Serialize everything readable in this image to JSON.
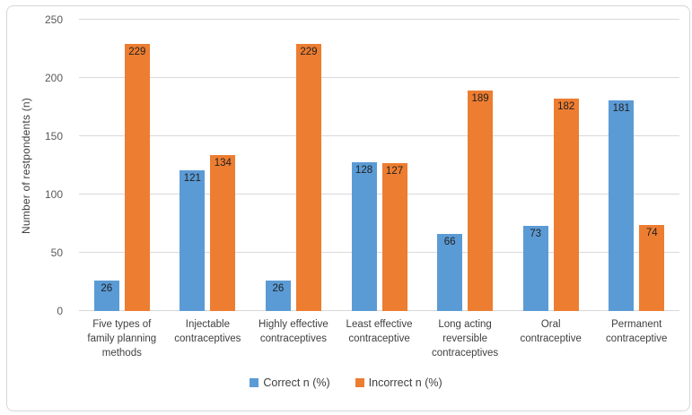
{
  "chart_data": {
    "type": "bar",
    "title": "",
    "xlabel": "",
    "ylabel": "Number of restpondents (n)",
    "ylim": [
      0,
      250
    ],
    "yticks": [
      0,
      50,
      100,
      150,
      200,
      250
    ],
    "grid": true,
    "legend_position": "bottom",
    "data_labels": "inside-end",
    "categories": [
      "Five types of family planning methods",
      "Injectable contraceptives",
      "Highly effective contraceptives",
      "Least effective contraceptive",
      "Long acting reversible contraceptives",
      "Oral contraceptive",
      "Permanent contraceptive"
    ],
    "series": [
      {
        "name": "Correct n (%)",
        "color": "#5B9BD5",
        "values": [
          26,
          121,
          26,
          128,
          66,
          73,
          181
        ]
      },
      {
        "name": "Incorrect n (%)",
        "color": "#ED7D31",
        "values": [
          229,
          134,
          229,
          127,
          189,
          182,
          74
        ]
      }
    ]
  },
  "colors": {
    "background": "#ffffff",
    "frame_border": "#d6d6d6",
    "gridline": "#d9d9d9",
    "axis_tick_text": "#595959",
    "category_text": "#404040",
    "data_label_text": "#1f1f1f",
    "correct_series": "#5B9BD5",
    "incorrect_series": "#ED7D31"
  }
}
